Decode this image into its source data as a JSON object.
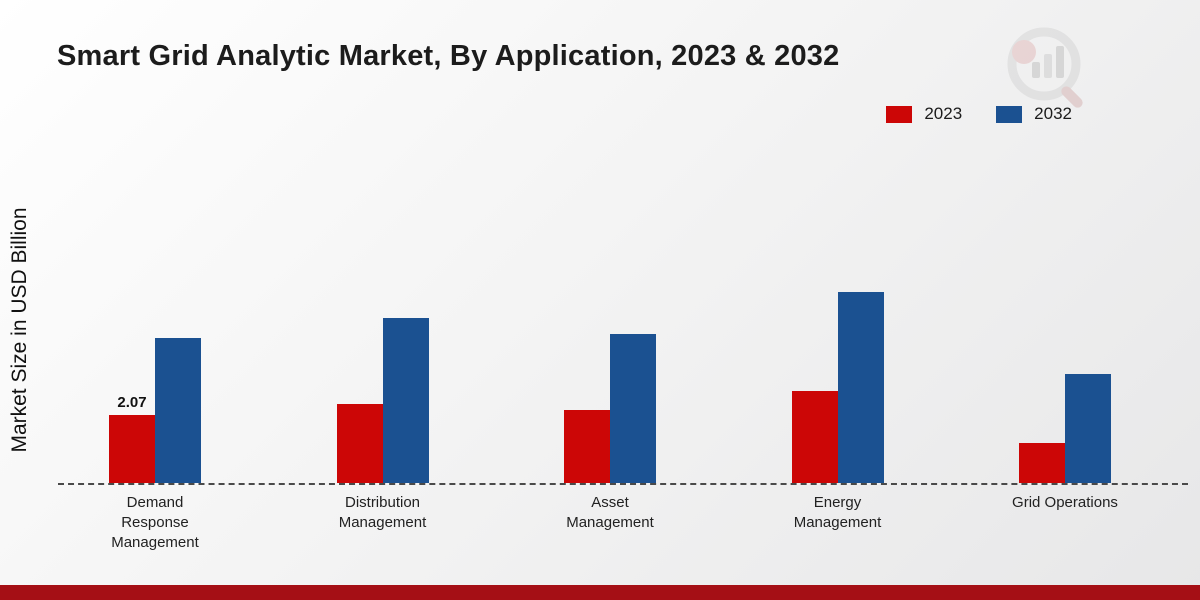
{
  "page": {
    "title": "Smart Grid Analytic Market, By Application, 2023 & 2032",
    "y_axis_label": "Market Size in USD Billion"
  },
  "legend": {
    "items": [
      {
        "label": "2023",
        "color": "#cc0606"
      },
      {
        "label": "2032",
        "color": "#1b5191"
      }
    ]
  },
  "footer": {
    "band_color": "#a50f15"
  },
  "chart_data": {
    "type": "bar",
    "title": "Smart Grid Analytic Market, By Application, 2023 & 2032",
    "xlabel": "",
    "ylabel": "Market Size in USD Billion",
    "ylim": [
      0,
      6.5
    ],
    "grid": false,
    "legend_position": "top-right",
    "baseline_style": "dashed",
    "categories": [
      "Demand Response Management",
      "Distribution Management",
      "Asset Management",
      "Energy Management",
      "Grid Operations"
    ],
    "series": [
      {
        "name": "2023",
        "color": "#cc0606",
        "values": [
          2.07,
          2.4,
          2.2,
          2.8,
          1.2
        ],
        "value_labels": [
          "2.07",
          "",
          "",
          "",
          ""
        ]
      },
      {
        "name": "2032",
        "color": "#1b5191",
        "values": [
          4.4,
          5.0,
          4.5,
          5.8,
          3.3
        ],
        "value_labels": [
          "",
          "",
          "",
          "",
          ""
        ]
      }
    ]
  }
}
